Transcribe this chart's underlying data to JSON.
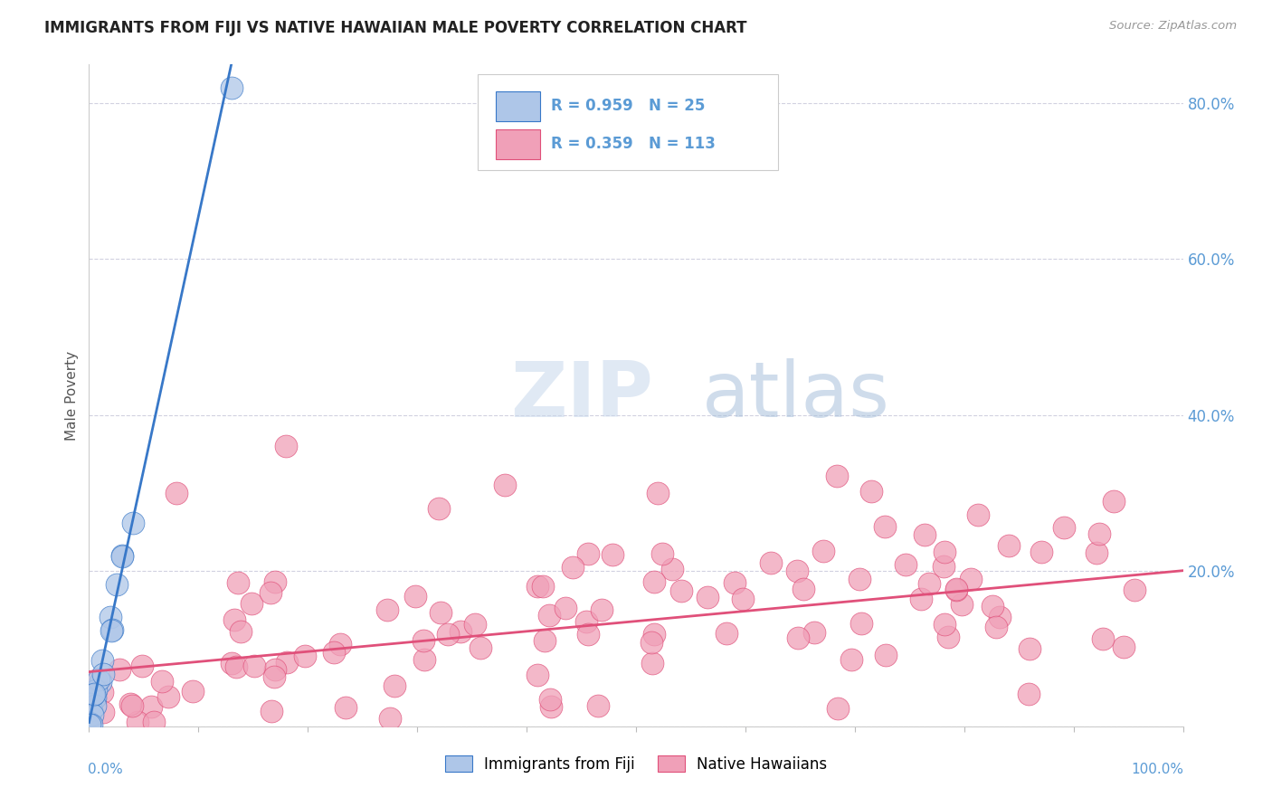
{
  "title": "IMMIGRANTS FROM FIJI VS NATIVE HAWAIIAN MALE POVERTY CORRELATION CHART",
  "source": "Source: ZipAtlas.com",
  "ylabel": "Male Poverty",
  "right_ytick_labels": [
    "",
    "20.0%",
    "40.0%",
    "60.0%",
    "80.0%"
  ],
  "legend_blue_label": "Immigrants from Fiji",
  "legend_pink_label": "Native Hawaiians",
  "blue_scatter_color": "#aec6e8",
  "blue_line_color": "#3878c8",
  "pink_scatter_color": "#f0a0b8",
  "pink_line_color": "#e0507a",
  "background_color": "#ffffff",
  "grid_color": "#ccccdd",
  "title_color": "#222222",
  "source_color": "#999999",
  "ylabel_color": "#555555",
  "right_tick_color": "#5b9bd5",
  "legend_text_color": "#5b9bd5",
  "watermark_zip_color": "#d0dcea",
  "watermark_atlas_color": "#b8cce4",
  "xlim": [
    0,
    1.0
  ],
  "ylim": [
    0,
    0.85
  ],
  "yticks": [
    0.0,
    0.2,
    0.4,
    0.6,
    0.8
  ],
  "blue_slope": 6.5,
  "blue_intercept": 0.005,
  "pink_slope": 0.13,
  "pink_intercept": 0.07
}
